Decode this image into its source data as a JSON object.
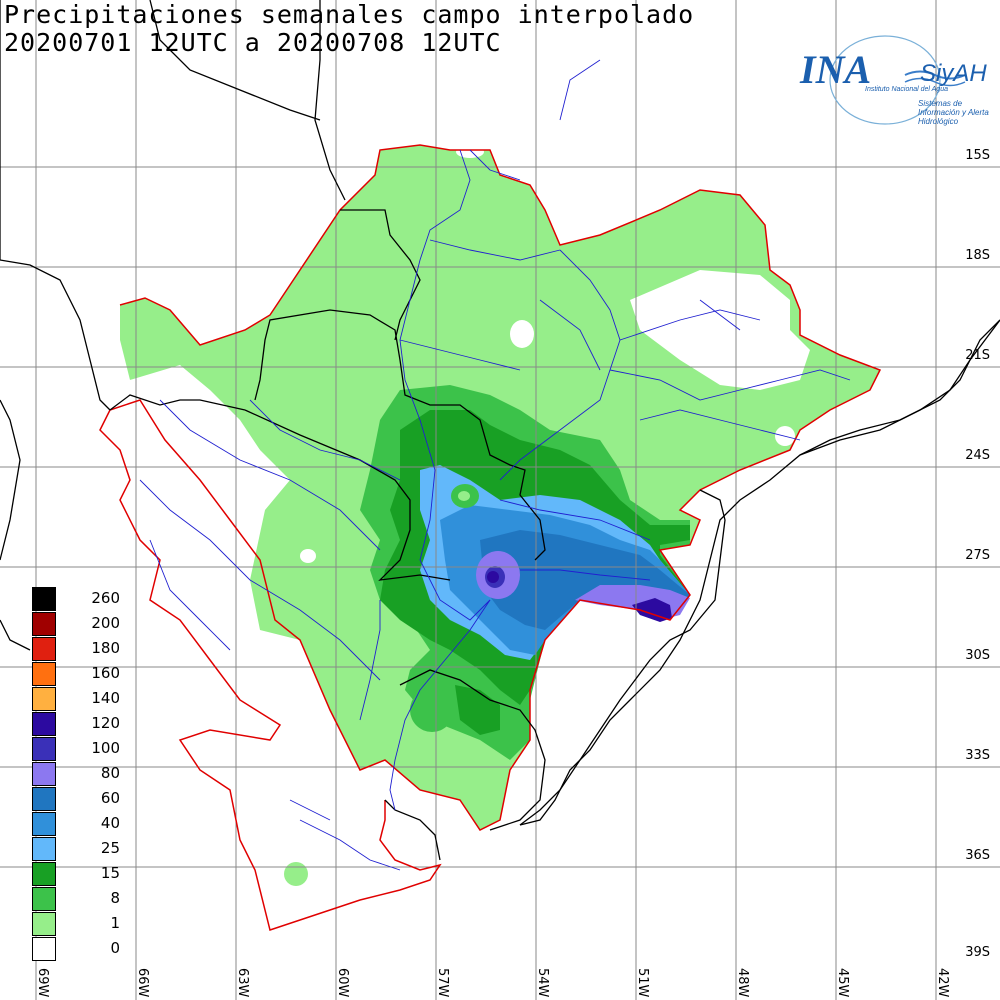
{
  "title": {
    "line1": "Precipitaciones semanales campo interpolado",
    "line2": "20200701 12UTC a 20200708 12UTC"
  },
  "logo": {
    "name": "INA",
    "product": "SiyAH",
    "institution": "Instituto Nacional del Agua",
    "subtitle": "Sistemas de Información y Alerta Hidrológico"
  },
  "axes": {
    "latitudes": [
      "15S",
      "18S",
      "21S",
      "24S",
      "27S",
      "30S",
      "33S",
      "36S",
      "39S"
    ],
    "longitudes": [
      "69W",
      "66W",
      "63W",
      "60W",
      "57W",
      "54W",
      "51W",
      "48W",
      "45W",
      "42W"
    ]
  },
  "legend": [
    {
      "value": "260",
      "color": "#000000"
    },
    {
      "value": "200",
      "color": "#a00000"
    },
    {
      "value": "180",
      "color": "#e02010"
    },
    {
      "value": "160",
      "color": "#ff7010"
    },
    {
      "value": "140",
      "color": "#ffb040"
    },
    {
      "value": "120",
      "color": "#2c0aa0"
    },
    {
      "value": "100",
      "color": "#3a30b8"
    },
    {
      "value": "80",
      "color": "#8c78f0"
    },
    {
      "value": "60",
      "color": "#2076c0"
    },
    {
      "value": "40",
      "color": "#3090da"
    },
    {
      "value": "25",
      "color": "#62b8fa"
    },
    {
      "value": "15",
      "color": "#18a024"
    },
    {
      "value": "8",
      "color": "#3cc24a"
    },
    {
      "value": "1",
      "color": "#96ee8a"
    },
    {
      "value": "0",
      "color": "#ffffff"
    }
  ]
}
